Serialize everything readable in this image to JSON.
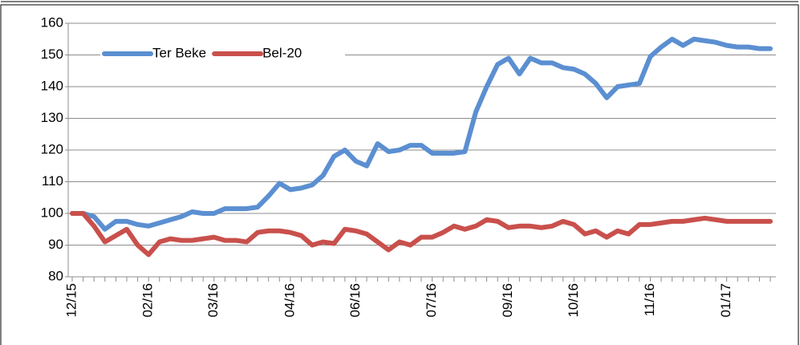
{
  "chart_data": {
    "type": "line",
    "categories": [
      "12/15",
      null,
      null,
      null,
      null,
      null,
      null,
      "02/16",
      null,
      null,
      null,
      null,
      null,
      "03/16",
      null,
      null,
      null,
      null,
      null,
      null,
      "04/16",
      null,
      null,
      null,
      null,
      null,
      "06/16",
      null,
      null,
      null,
      null,
      null,
      null,
      "07/16",
      null,
      null,
      null,
      null,
      null,
      null,
      "09/16",
      null,
      null,
      null,
      null,
      null,
      "10/16",
      null,
      null,
      null,
      null,
      null,
      null,
      "11/16",
      null,
      null,
      null,
      null,
      null,
      null,
      "01/17",
      null,
      null,
      null,
      null
    ],
    "series": [
      {
        "name": "Ter Beke",
        "color": "#5b8fd1",
        "values": [
          100,
          100,
          99,
          95,
          97.5,
          97.5,
          96.5,
          96,
          97,
          98,
          99,
          100.5,
          100,
          100,
          101.5,
          101.5,
          101.5,
          102,
          105.5,
          109.5,
          107.5,
          108,
          109,
          112,
          118,
          120,
          116.5,
          115,
          122,
          119.5,
          120,
          121.5,
          121.5,
          119,
          119,
          119,
          119.5,
          132,
          140,
          147,
          149,
          144,
          149,
          147.5,
          147.5,
          146,
          145.5,
          144,
          141,
          136.5,
          140,
          140.5,
          141,
          149.5,
          152.5,
          155,
          153,
          155,
          154.5,
          154,
          153,
          152.5,
          152.5,
          152,
          152
        ]
      },
      {
        "name": "Bel-20",
        "color": "#c9504c",
        "values": [
          100,
          100,
          96,
          91,
          93,
          95,
          90,
          87,
          91,
          92,
          91.5,
          91.5,
          92,
          92.5,
          91.5,
          91.5,
          91,
          94,
          94.5,
          94.5,
          94,
          93,
          90,
          91,
          90.5,
          95,
          94.5,
          93.5,
          91,
          88.5,
          91,
          90,
          92.5,
          92.5,
          94,
          96,
          95,
          96,
          98,
          97.5,
          95.5,
          96,
          96,
          95.5,
          96,
          97.5,
          96.5,
          93.5,
          94.5,
          92.5,
          94.5,
          93.5,
          96.5,
          96.5,
          97,
          97.5,
          97.5,
          98,
          98.5,
          98,
          97.5,
          97.5,
          97.5,
          97.5,
          97.5
        ]
      }
    ],
    "ylim": [
      80,
      160
    ],
    "yticks": [
      80,
      90,
      100,
      110,
      120,
      130,
      140,
      150,
      160
    ],
    "grid": true,
    "legend": "upper left"
  }
}
